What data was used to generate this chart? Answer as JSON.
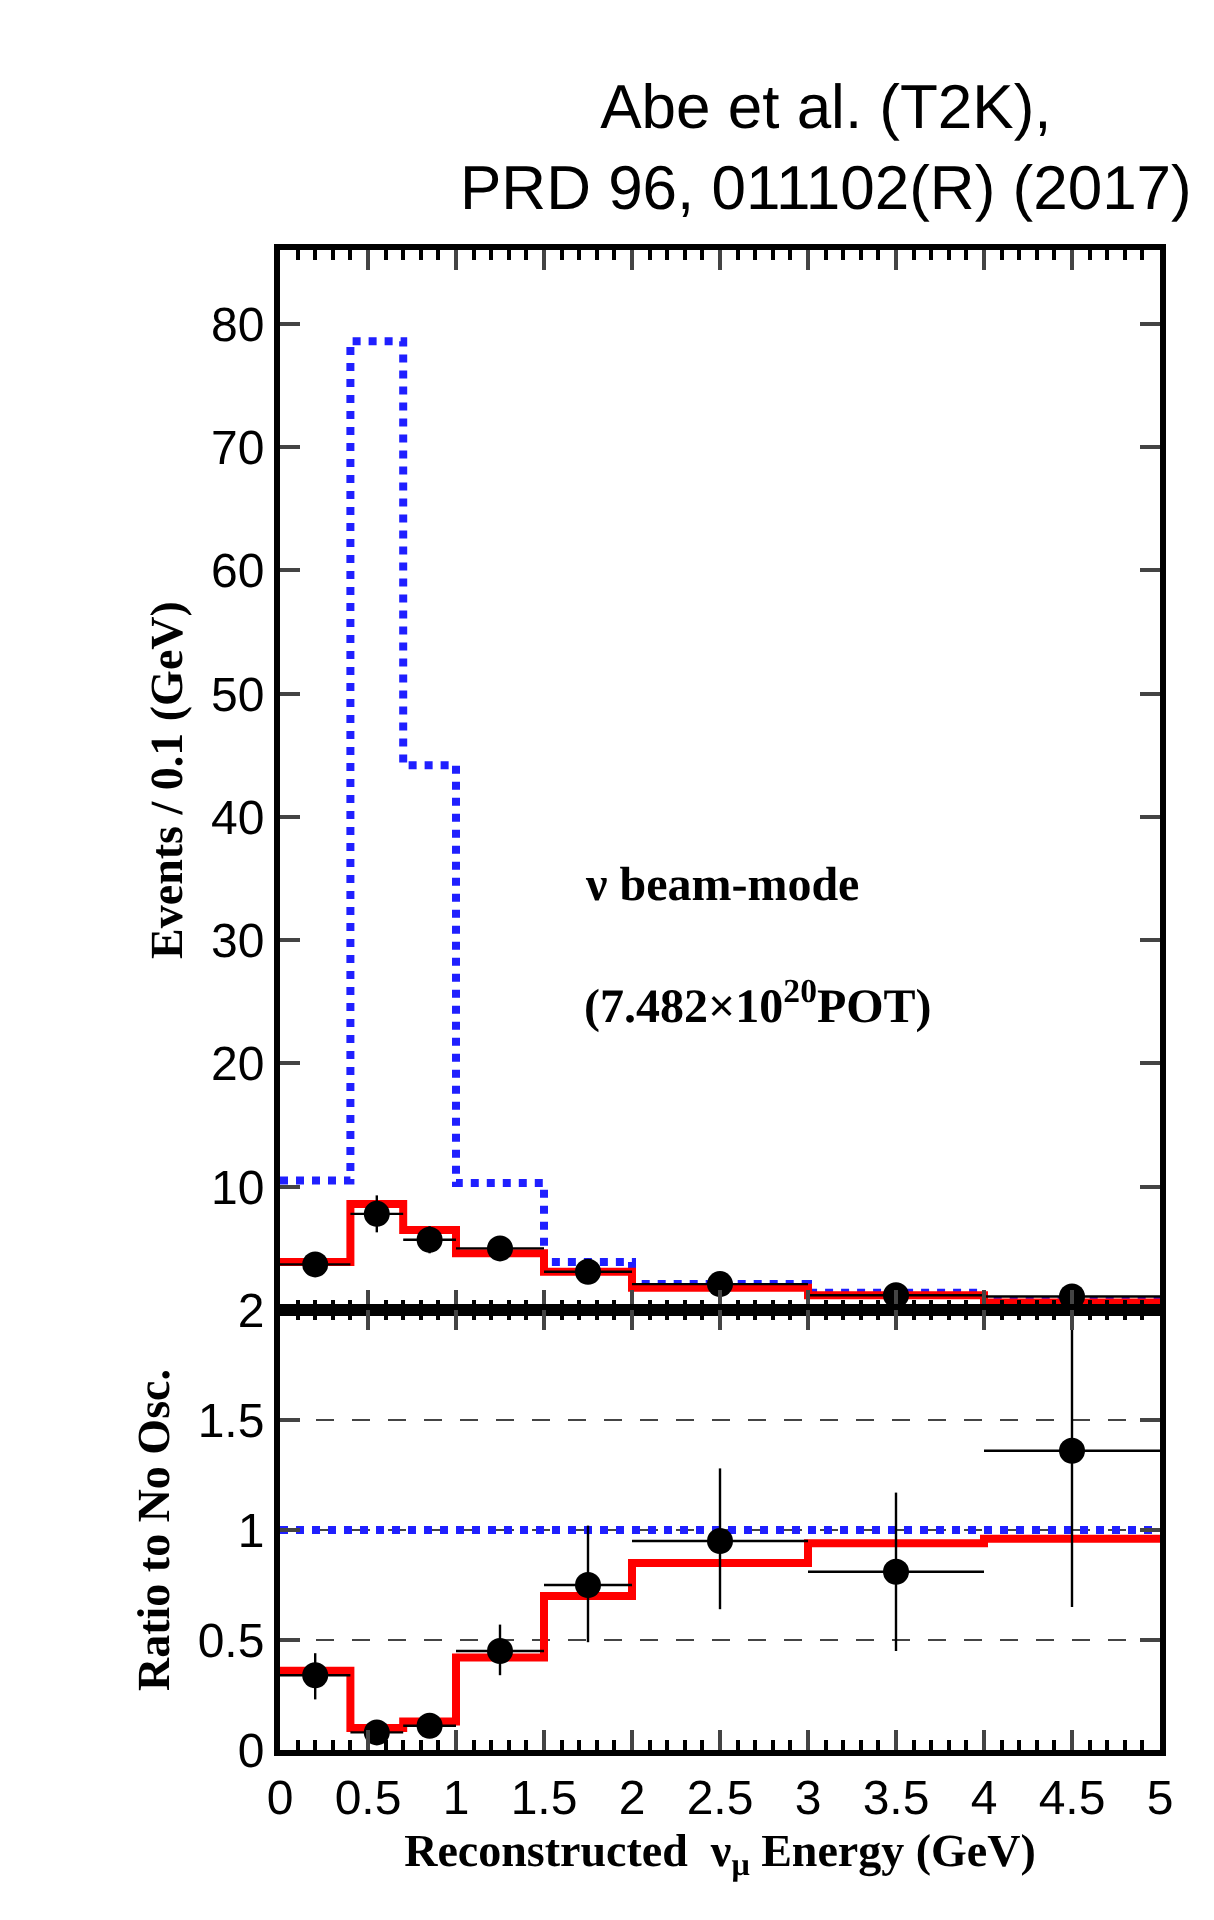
{
  "chart_data": [
    {
      "type": "histogram",
      "title": "Abe et al. (T2K),\nPRD 96, 011102(R) (2017)",
      "ylabel": "Events / 0.1 (GeV)",
      "bins": [
        0,
        0.4,
        0.7,
        1.0,
        1.5,
        2.0,
        3.0,
        4.0,
        5.0
      ],
      "series": [
        {
          "color": "#1f1fff",
          "line_style": "dotted",
          "values": [
            10.5,
            78.6,
            44.2,
            10.3,
            3.9,
            2.1,
            1.4,
            0.8
          ]
        },
        {
          "color": "#ff0000",
          "line_style": "solid",
          "values": [
            3.9,
            8.6,
            6.5,
            4.6,
            3.1,
            1.8,
            1.2,
            0.6
          ]
        },
        {
          "type": "scatter",
          "color": "#000000",
          "marker": "circle",
          "x": [
            0.2,
            0.55,
            0.85,
            1.25,
            1.75,
            2.5,
            3.5,
            4.5
          ],
          "values": [
            3.7,
            7.8,
            5.7,
            5.0,
            3.1,
            2.1,
            1.2,
            1.1
          ],
          "errors": [
            0.9,
            1.5,
            1.1,
            0.8,
            0.6,
            0.4,
            0.3,
            0.3
          ],
          "xerrors": [
            0.2,
            0.15,
            0.15,
            0.25,
            0.25,
            0.5,
            0.5,
            0.5
          ]
        }
      ],
      "annotations": [
        "ν beam-mode",
        "(7.482×10$^{20}$POT)"
      ],
      "xlim": [
        0,
        5
      ],
      "xticks": [
        0,
        0.5,
        1,
        1.5,
        2,
        2.5,
        3,
        3.5,
        4,
        4.5,
        5
      ],
      "ylim": [
        0,
        86
      ],
      "yticks": [
        10,
        20,
        30,
        40,
        50,
        60,
        70,
        80
      ],
      "tick_labels": "y",
      "grid": false
    },
    {
      "type": "histogram",
      "xlabel": "Reconstructed  ν$_{μ}$ Energy (GeV)",
      "ylabel": "Ratio to No Osc.",
      "bins": [
        0,
        0.4,
        0.7,
        1.0,
        1.5,
        2.0,
        3.0,
        4.0,
        5.0
      ],
      "series": [
        {
          "color": "#1f1fff",
          "line_style": "dotted",
          "values": [
            1,
            1,
            1,
            1,
            1,
            1,
            1,
            1
          ]
        },
        {
          "color": "#ff0000",
          "line_style": "solid",
          "values": [
            0.36,
            0.1,
            0.13,
            0.42,
            0.7,
            0.85,
            0.94,
            0.96
          ]
        },
        {
          "type": "scatter",
          "color": "#000000",
          "marker": "circle",
          "x": [
            0.2,
            0.55,
            0.85,
            1.25,
            1.75,
            2.5,
            3.5,
            4.5
          ],
          "values": [
            0.34,
            0.08,
            0.11,
            0.45,
            0.75,
            0.95,
            0.81,
            1.36
          ],
          "errors": [
            [
              0.23,
              0.44
            ],
            null,
            null,
            [
              0.34,
              0.57
            ],
            [
              0.49,
              1.02
            ],
            [
              0.64,
              1.28
            ],
            [
              0.45,
              1.17
            ],
            [
              0.65,
              1.99
            ]
          ],
          "xerrors": [
            0.2,
            0.15,
            0.15,
            0.25,
            0.25,
            0.5,
            0.5,
            0.5
          ]
        }
      ],
      "xlim": [
        0,
        5
      ],
      "xticks": [
        0,
        0.5,
        1,
        1.5,
        2,
        2.5,
        3,
        3.5,
        4,
        4.5,
        5
      ],
      "ylim": [
        0,
        2
      ],
      "yticks": [
        0,
        0.5,
        1,
        1.5,
        2
      ],
      "grid": "y"
    }
  ]
}
